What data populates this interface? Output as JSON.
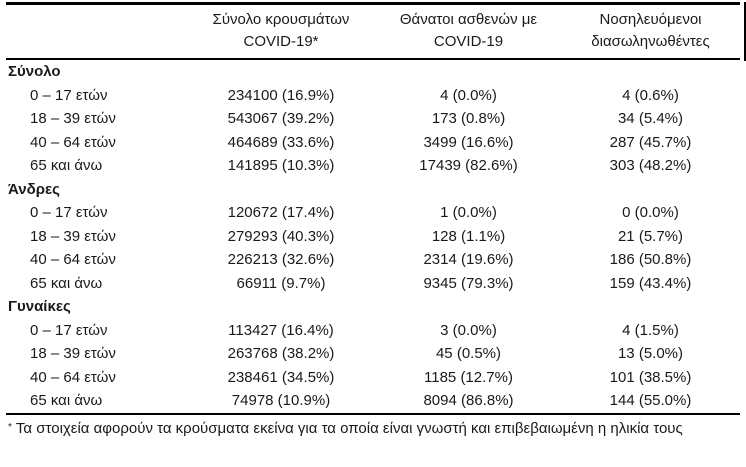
{
  "page": {
    "background": "#ffffff",
    "text_color": "#1a1a1a",
    "rule_color": "#000000"
  },
  "table": {
    "header": {
      "col_cases": {
        "line1": "Σύνολο κρουσμάτων",
        "line2": "COVID-19*"
      },
      "col_deaths": {
        "line1": "Θάνατοι ασθενών με",
        "line2": "COVID-19"
      },
      "col_intubated": {
        "line1": "Νοσηλευόμενοι",
        "line2": "διασωληνωθέντες"
      }
    },
    "sections": [
      {
        "label": "Σύνολο",
        "rows": [
          {
            "label": "0 – 17 ετών",
            "cases": "234100 (16.9%)",
            "deaths": "4 (0.0%)",
            "intubated": "4 (0.6%)"
          },
          {
            "label": "18 – 39 ετών",
            "cases": "543067 (39.2%)",
            "deaths": "173 (0.8%)",
            "intubated": "34 (5.4%)"
          },
          {
            "label": "40 – 64 ετών",
            "cases": "464689 (33.6%)",
            "deaths": "3499 (16.6%)",
            "intubated": "287 (45.7%)"
          },
          {
            "label": "65 και άνω",
            "cases": "141895 (10.3%)",
            "deaths": "17439 (82.6%)",
            "intubated": "303 (48.2%)"
          }
        ]
      },
      {
        "label": "Άνδρες",
        "rows": [
          {
            "label": "0 – 17 ετών",
            "cases": "120672 (17.4%)",
            "deaths": "1 (0.0%)",
            "intubated": "0 (0.0%)"
          },
          {
            "label": "18 – 39 ετών",
            "cases": "279293 (40.3%)",
            "deaths": "128 (1.1%)",
            "intubated": "21 (5.7%)"
          },
          {
            "label": "40 – 64 ετών",
            "cases": "226213 (32.6%)",
            "deaths": "2314 (19.6%)",
            "intubated": "186 (50.8%)"
          },
          {
            "label": "65 και άνω",
            "cases": "66911 (9.7%)",
            "deaths": "9345 (79.3%)",
            "intubated": "159 (43.4%)"
          }
        ]
      },
      {
        "label": "Γυναίκες",
        "rows": [
          {
            "label": "0 – 17 ετών",
            "cases": "113427 (16.4%)",
            "deaths": "3 (0.0%)",
            "intubated": "4 (1.5%)"
          },
          {
            "label": "18 – 39 ετών",
            "cases": "263768 (38.2%)",
            "deaths": "45 (0.5%)",
            "intubated": "13 (5.0%)"
          },
          {
            "label": "40 – 64 ετών",
            "cases": "238461 (34.5%)",
            "deaths": "1185 (12.7%)",
            "intubated": "101 (38.5%)"
          },
          {
            "label": "65 και άνω",
            "cases": "74978 (10.9%)",
            "deaths": "8094 (86.8%)",
            "intubated": "144 (55.0%)"
          }
        ]
      }
    ]
  },
  "footnote": {
    "marker": "*",
    "text": "Τα στοιχεία αφορούν τα κρούσματα εκείνα για τα οποία είναι γνωστή και επιβεβαιωμένη η ηλικία τους"
  }
}
